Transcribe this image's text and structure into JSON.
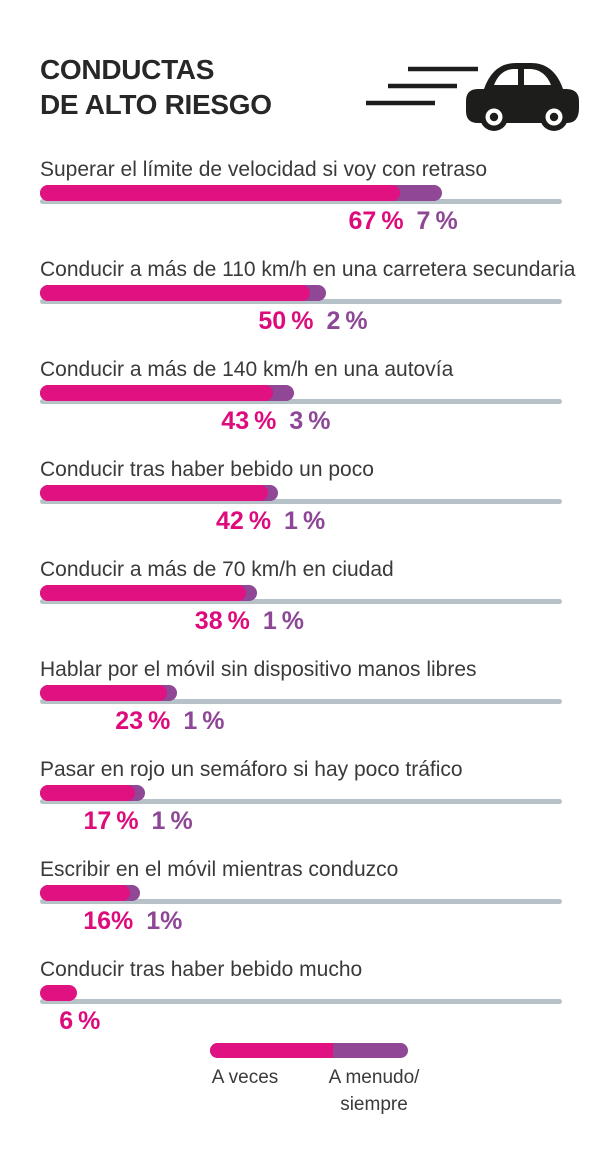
{
  "title": {
    "line1": "CONDUCTAS",
    "line2": "DE ALTO RIESGO"
  },
  "header_icon": "speeding-car-icon",
  "colors": {
    "sometimes": "#e01180",
    "often": "#8f4796",
    "sometimes_text": "#de0b7c",
    "often_text": "#8e4796",
    "track": "#b7c2c8",
    "title_text": "#272727",
    "label_text": "#3a3a3a",
    "icon": "#1d1d1b",
    "background": "#ffffff"
  },
  "rows": [
    {
      "label": "Superar el límite de velocidad si voy con retraso",
      "sometimes": 67,
      "often": 7,
      "sometimes_label": "67 %",
      "often_label": "7 %"
    },
    {
      "label": "Conducir a más de 110 km/h en una carretera secundaria",
      "sometimes": 50,
      "often": 2,
      "sometimes_label": "50 %",
      "often_label": "2 %"
    },
    {
      "label": "Conducir a más de 140 km/h en una autovía",
      "sometimes": 43,
      "often": 3,
      "sometimes_label": "43 %",
      "often_label": "3 %"
    },
    {
      "label": "Conducir tras haber bebido un poco",
      "sometimes": 42,
      "often": 1,
      "sometimes_label": "42 %",
      "often_label": "1 %"
    },
    {
      "label": "Conducir a más de 70 km/h en ciudad",
      "sometimes": 38,
      "often": 1,
      "sometimes_label": "38 %",
      "often_label": "1 %"
    },
    {
      "label": "Hablar por el móvil sin dispositivo manos libres",
      "sometimes": 23,
      "often": 1,
      "sometimes_label": "23 %",
      "often_label": "1 %"
    },
    {
      "label": "Pasar en rojo un semáforo si hay poco tráfico",
      "sometimes": 17,
      "often": 1,
      "sometimes_label": "17 %",
      "often_label": "1 %"
    },
    {
      "label": "Escribir en el móvil mientras conduzco",
      "sometimes": 16,
      "often": 1,
      "sometimes_label": "16%",
      "often_label": "1%"
    },
    {
      "label": "Conducir tras haber bebido mucho",
      "sometimes": 6,
      "often": 0,
      "sometimes_label": "6 %",
      "often_label": ""
    }
  ],
  "legend": {
    "sometimes_label": "A veces",
    "often_label_line1": "A menudo/",
    "often_label_line2": "siempre"
  },
  "chart_data": {
    "type": "bar",
    "orientation": "horizontal",
    "title": "CONDUCTAS DE ALTO RIESGO",
    "unit": "%",
    "categories": [
      "Superar el límite de velocidad si voy con retraso",
      "Conducir a más de 110 km/h en una carretera secundaria",
      "Conducir a más de 140 km/h en una autovía",
      "Conducir tras haber bebido un poco",
      "Conducir a más de 70 km/h en ciudad",
      "Hablar por el móvil sin dispositivo manos libres",
      "Pasar en rojo un semáforo si hay poco tráfico",
      "Escribir en el móvil mientras conduzco",
      "Conducir tras haber bebido mucho"
    ],
    "series": [
      {
        "name": "A veces",
        "color": "#e01180",
        "values": [
          67,
          50,
          43,
          42,
          38,
          23,
          17,
          16,
          6
        ]
      },
      {
        "name": "A menudo/siempre",
        "color": "#8f4796",
        "values": [
          7,
          2,
          3,
          1,
          1,
          1,
          1,
          1,
          0
        ]
      }
    ],
    "xlim": [
      0,
      100
    ],
    "grid": false,
    "value_labels": true,
    "legend_position": "bottom"
  }
}
